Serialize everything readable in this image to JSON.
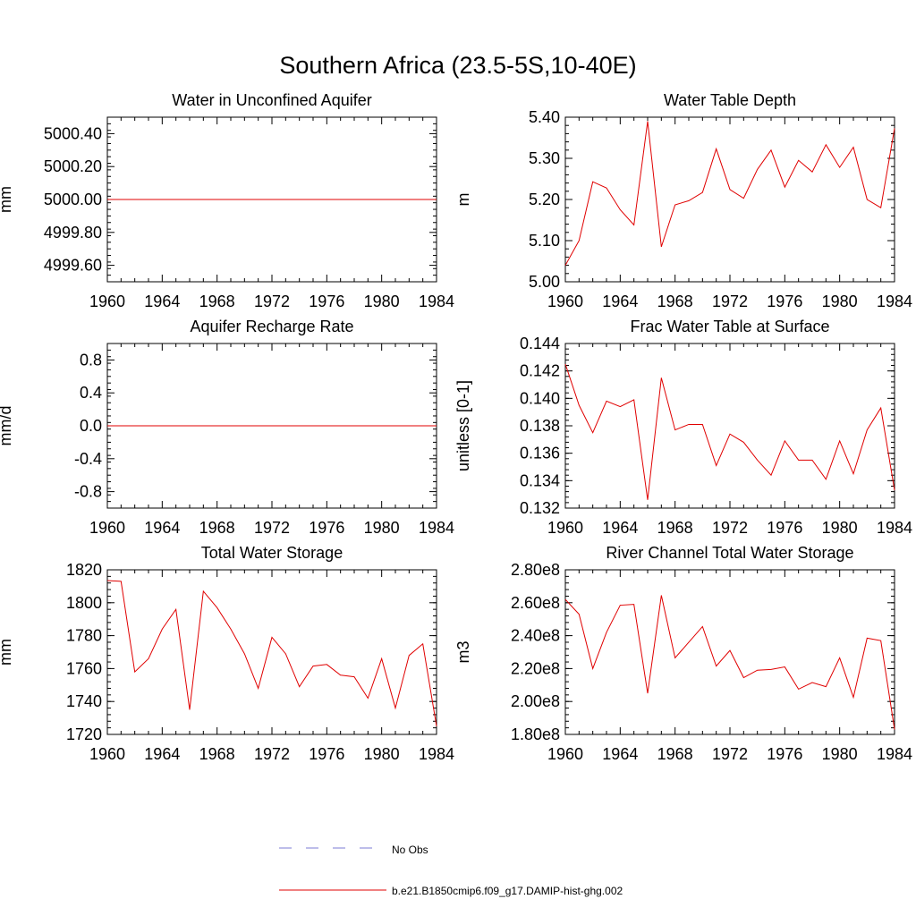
{
  "figure": {
    "title": "Southern Africa (23.5-5S,10-40E)"
  },
  "legend": {
    "entries": [
      {
        "label": "No Obs",
        "color": "#7b7bd6",
        "style": "dashed"
      },
      {
        "label": "b.e21.B1850cmip6.f09_g17.DAMIP-hist-ghg.002",
        "color": "#e00000",
        "style": "solid"
      }
    ]
  },
  "colors": {
    "series": "#e00000",
    "axis": "#000000"
  },
  "chart_data": [
    {
      "type": "line",
      "title": "Water in Unconfined Aquifer",
      "ylabel": "mm",
      "xlim": [
        1960,
        1984
      ],
      "ylim": [
        4999.5,
        5000.5
      ],
      "xticks": [
        1960,
        1964,
        1968,
        1972,
        1976,
        1980,
        1984
      ],
      "yticks": [
        4999.6,
        4999.8,
        5000.0,
        5000.2,
        5000.4
      ],
      "ytick_labels": [
        "4999.60",
        "4999.80",
        "5000.00",
        "5000.20",
        "5000.40"
      ],
      "x": [
        1960,
        1961,
        1962,
        1963,
        1964,
        1965,
        1966,
        1967,
        1968,
        1969,
        1970,
        1971,
        1972,
        1973,
        1974,
        1975,
        1976,
        1977,
        1978,
        1979,
        1980,
        1981,
        1982,
        1983,
        1984
      ],
      "series": [
        {
          "values": [
            5000,
            5000,
            5000,
            5000,
            5000,
            5000,
            5000,
            5000,
            5000,
            5000,
            5000,
            5000,
            5000,
            5000,
            5000,
            5000,
            5000,
            5000,
            5000,
            5000,
            5000,
            5000,
            5000,
            5000,
            5000
          ]
        }
      ]
    },
    {
      "type": "line",
      "title": "Water Table Depth",
      "ylabel": "m",
      "xlim": [
        1960,
        1984
      ],
      "ylim": [
        5.0,
        5.4
      ],
      "xticks": [
        1960,
        1964,
        1968,
        1972,
        1976,
        1980,
        1984
      ],
      "yticks": [
        5.0,
        5.1,
        5.2,
        5.3,
        5.4
      ],
      "ytick_labels": [
        "5.00",
        "5.10",
        "5.20",
        "5.30",
        "5.40"
      ],
      "x": [
        1960,
        1961,
        1962,
        1963,
        1964,
        1965,
        1966,
        1967,
        1968,
        1969,
        1970,
        1971,
        1972,
        1973,
        1974,
        1975,
        1976,
        1977,
        1978,
        1979,
        1980,
        1981,
        1982,
        1983,
        1984
      ],
      "series": [
        {
          "values": [
            5.04,
            5.1,
            5.243,
            5.228,
            5.175,
            5.138,
            5.39,
            5.085,
            5.187,
            5.197,
            5.217,
            5.323,
            5.224,
            5.203,
            5.273,
            5.32,
            5.23,
            5.295,
            5.267,
            5.333,
            5.278,
            5.327,
            5.2,
            5.18,
            5.373
          ]
        }
      ]
    },
    {
      "type": "line",
      "title": "Aquifer Recharge Rate",
      "ylabel": "mm/d",
      "xlim": [
        1960,
        1984
      ],
      "ylim": [
        -1.0,
        1.0
      ],
      "xticks": [
        1960,
        1964,
        1968,
        1972,
        1976,
        1980,
        1984
      ],
      "yticks": [
        -0.8,
        -0.4,
        0.0,
        0.4,
        0.8
      ],
      "ytick_labels": [
        "-0.8",
        "-0.4",
        "0.0",
        "0.4",
        "0.8"
      ],
      "x": [
        1960,
        1961,
        1962,
        1963,
        1964,
        1965,
        1966,
        1967,
        1968,
        1969,
        1970,
        1971,
        1972,
        1973,
        1974,
        1975,
        1976,
        1977,
        1978,
        1979,
        1980,
        1981,
        1982,
        1983,
        1984
      ],
      "series": [
        {
          "values": [
            0,
            0,
            0,
            0,
            0,
            0,
            0,
            0,
            0,
            0,
            0,
            0,
            0,
            0,
            0,
            0,
            0,
            0,
            0,
            0,
            0,
            0,
            0,
            0,
            0
          ]
        }
      ]
    },
    {
      "type": "line",
      "title": "Frac Water Table at Surface",
      "ylabel": "unitless [0-1]",
      "xlim": [
        1960,
        1984
      ],
      "ylim": [
        0.132,
        0.144
      ],
      "xticks": [
        1960,
        1964,
        1968,
        1972,
        1976,
        1980,
        1984
      ],
      "yticks": [
        0.132,
        0.134,
        0.136,
        0.138,
        0.14,
        0.142,
        0.144
      ],
      "ytick_labels": [
        "0.132",
        "0.134",
        "0.136",
        "0.138",
        "0.140",
        "0.142",
        "0.144"
      ],
      "x": [
        1960,
        1961,
        1962,
        1963,
        1964,
        1965,
        1966,
        1967,
        1968,
        1969,
        1970,
        1971,
        1972,
        1973,
        1974,
        1975,
        1976,
        1977,
        1978,
        1979,
        1980,
        1981,
        1982,
        1983,
        1984
      ],
      "series": [
        {
          "values": [
            0.1425,
            0.1395,
            0.1375,
            0.1398,
            0.1394,
            0.1399,
            0.1326,
            0.1415,
            0.1377,
            0.1381,
            0.1381,
            0.1351,
            0.1374,
            0.1368,
            0.1355,
            0.1344,
            0.1369,
            0.1355,
            0.1355,
            0.1341,
            0.1369,
            0.1345,
            0.1377,
            0.1393,
            0.1333
          ]
        }
      ]
    },
    {
      "type": "line",
      "title": "Total Water Storage",
      "ylabel": "mm",
      "xlim": [
        1960,
        1984
      ],
      "ylim": [
        1720,
        1820
      ],
      "xticks": [
        1960,
        1964,
        1968,
        1972,
        1976,
        1980,
        1984
      ],
      "yticks": [
        1720,
        1740,
        1760,
        1780,
        1800,
        1820
      ],
      "ytick_labels": [
        "1720",
        "1740",
        "1760",
        "1780",
        "1800",
        "1820"
      ],
      "x": [
        1960,
        1961,
        1962,
        1963,
        1964,
        1965,
        1966,
        1967,
        1968,
        1969,
        1970,
        1971,
        1972,
        1973,
        1974,
        1975,
        1976,
        1977,
        1978,
        1979,
        1980,
        1981,
        1982,
        1983,
        1984
      ],
      "series": [
        {
          "values": [
            1813.5,
            1813,
            1758,
            1766,
            1784,
            1796,
            1735,
            1807,
            1797,
            1784,
            1769,
            1748,
            1779,
            1769,
            1749,
            1761.5,
            1762.5,
            1756,
            1755,
            1742,
            1766,
            1736,
            1768,
            1775,
            1725
          ]
        }
      ]
    },
    {
      "type": "line",
      "title": "River Channel Total Water Storage",
      "ylabel": "m3",
      "xlim": [
        1960,
        1984
      ],
      "ylim": [
        180000000,
        280000000
      ],
      "xticks": [
        1960,
        1964,
        1968,
        1972,
        1976,
        1980,
        1984
      ],
      "yticks": [
        180000000,
        200000000,
        220000000,
        240000000,
        260000000,
        280000000
      ],
      "ytick_labels": [
        "1.80e8",
        "2.00e8",
        "2.20e8",
        "2.40e8",
        "2.60e8",
        "2.80e8"
      ],
      "x": [
        1960,
        1961,
        1962,
        1963,
        1964,
        1965,
        1966,
        1967,
        1968,
        1969,
        1970,
        1971,
        1972,
        1973,
        1974,
        1975,
        1976,
        1977,
        1978,
        1979,
        1980,
        1981,
        1982,
        1983,
        1984
      ],
      "series": [
        {
          "values": [
            262000000,
            253000000,
            220000000,
            242000000,
            258500000,
            259000000,
            205000000,
            264500000,
            226500000,
            236000000,
            245500000,
            221500000,
            231000000,
            214500000,
            219000000,
            219500000,
            221000000,
            207500000,
            211500000,
            209000000,
            226500000,
            202500000,
            238500000,
            237000000,
            183000000
          ]
        }
      ]
    }
  ]
}
